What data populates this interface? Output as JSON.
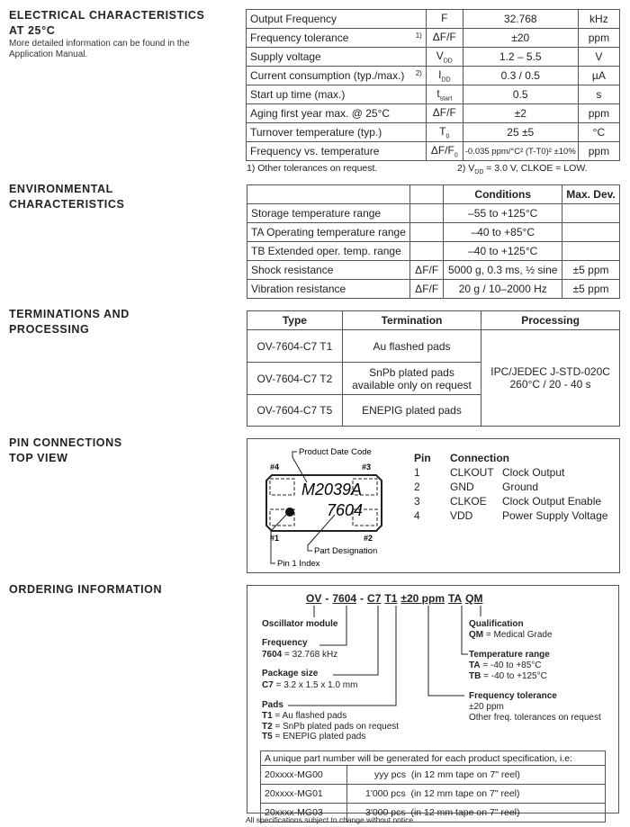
{
  "electrical": {
    "heading_line1": "ELECTRICAL CHARACTERISTICS",
    "heading_line2": "AT 25°C",
    "description": "More detailed information can be found in the Application Manual.",
    "rows": [
      {
        "param": "Output Frequency",
        "note": "",
        "symbol": "F",
        "sub": "",
        "value": "32.768",
        "unit": "kHz"
      },
      {
        "param": "Frequency tolerance",
        "note": "1)",
        "symbol": "ΔF/F",
        "sub": "",
        "value": "±20",
        "unit": "ppm"
      },
      {
        "param": "Supply voltage",
        "note": "",
        "symbol": "V",
        "sub": "DD",
        "value": "1.2 – 5.5",
        "unit": "V"
      },
      {
        "param": "Current consumption (typ./max.)",
        "note": "2)",
        "symbol": "I",
        "sub": "DD",
        "value": "0.3 / 0.5",
        "unit": "µA"
      },
      {
        "param": "Start up time (max.)",
        "note": "",
        "symbol": "t",
        "sub": "start",
        "value": "0.5",
        "unit": "s"
      },
      {
        "param": "Aging first year max. @ 25°C",
        "note": "",
        "symbol": "ΔF/F",
        "sub": "",
        "value": "±2",
        "unit": "ppm"
      },
      {
        "param": "Turnover temperature (typ.)",
        "note": "",
        "symbol": "T",
        "sub": "0",
        "value": "25 ±5",
        "unit": "°C"
      },
      {
        "param": "Frequency vs. temperature",
        "note": "",
        "symbol": "ΔF/F",
        "sub": "0",
        "value": "-0.035 ppm/°C² (T-T0)² ±10%",
        "unit": "ppm"
      }
    ],
    "footnote1": "1) Other tolerances on request.",
    "footnote2": "2) VDD = 3.0 V, CLKOE = LOW."
  },
  "environmental": {
    "heading_line1": "ENVIRONMENTAL",
    "heading_line2": "CHARACTERISTICS",
    "headers": [
      "",
      "",
      "Conditions",
      "Max. Dev."
    ],
    "rows": [
      [
        "Storage temperature range",
        "",
        "–55 to +125°C",
        ""
      ],
      [
        "TA Operating temperature range",
        "",
        "–40 to +85°C",
        ""
      ],
      [
        "TB Extended oper. temp. range",
        "",
        "–40 to +125°C",
        ""
      ],
      [
        "Shock resistance",
        "ΔF/F",
        "5000 g, 0.3 ms, ½ sine",
        "±5 ppm"
      ],
      [
        "Vibration resistance",
        "ΔF/F",
        "20 g / 10–2000 Hz",
        "±5 ppm"
      ]
    ]
  },
  "terminations": {
    "heading_line1": "TERMINATIONS AND",
    "heading_line2": "PROCESSING",
    "headers": [
      "Type",
      "Termination",
      "Processing"
    ],
    "rows": [
      [
        "OV-7604-C7 T1",
        "Au flashed pads"
      ],
      [
        "OV-7604-C7 T2",
        "SnPb plated pads available only on request"
      ],
      [
        "OV-7604-C7 T5",
        "ENEPIG plated pads"
      ]
    ],
    "processing_line1": "IPC/JEDEC J-STD-020C",
    "processing_line2": "260°C / 20 - 40 s"
  },
  "pins": {
    "heading_line1": "PIN CONNECTIONS",
    "heading_line2": "TOP VIEW",
    "diagram": {
      "date_code_label": "Product Date Code",
      "part_label": "Part Designation",
      "pin1_label": "Pin 1 Index",
      "marking1": "M2039A",
      "marking2": "7604",
      "p1": "#1",
      "p2": "#2",
      "p3": "#3",
      "p4": "#4"
    },
    "headers": [
      "Pin",
      "Connection"
    ],
    "rows": [
      [
        "1",
        "CLKOUT",
        "Clock Output"
      ],
      [
        "2",
        "GND",
        "Ground"
      ],
      [
        "3",
        "CLKOE",
        "Clock Output Enable"
      ],
      [
        "4",
        "VDD",
        "Power Supply Voltage"
      ]
    ]
  },
  "ordering": {
    "heading": "ORDERING INFORMATION",
    "code": [
      "OV",
      "-",
      "7604",
      "-",
      "C7",
      "T1",
      "±20 ppm",
      "TA",
      "QM"
    ],
    "oscillator": "Oscillator module",
    "frequency": {
      "title": "Frequency",
      "key": "7604",
      "text": "= 32.768 kHz"
    },
    "package": {
      "title": "Package size",
      "key": "C7",
      "text": "= 3.2 x 1.5 x 1.0 mm"
    },
    "pads": {
      "title": "Pads",
      "items": [
        [
          "T1",
          "= Au flashed pads"
        ],
        [
          "T2",
          "= SnPb plated pads on request"
        ],
        [
          "T5",
          "= ENEPIG plated pads"
        ]
      ]
    },
    "qualification": {
      "title": "Qualification",
      "key": "QM",
      "text": "= Medical Grade"
    },
    "temperature": {
      "title": "Temperature range",
      "items": [
        [
          "TA",
          "= -40 to +85°C"
        ],
        [
          "TB",
          "= -40 to +125°C"
        ]
      ]
    },
    "tolerance": {
      "title": "Frequency tolerance",
      "line1": "±20 ppm",
      "line2": "Other freq. tolerances on request"
    },
    "table_header": "A unique part number will be generated for each product specification, i.e:",
    "table_rows": [
      [
        "20xxxx-MG00",
        "yyy pcs  (in 12 mm tape on 7\" reel)"
      ],
      [
        "20xxxx-MG01",
        "1'000 pcs  (in 12 mm tape on 7\" reel)"
      ],
      [
        "20xxxx-MG03",
        "3'000 pcs  (in 12 mm tape on 7\" reel)"
      ]
    ]
  },
  "footer": "All specifications subject to change without notice."
}
